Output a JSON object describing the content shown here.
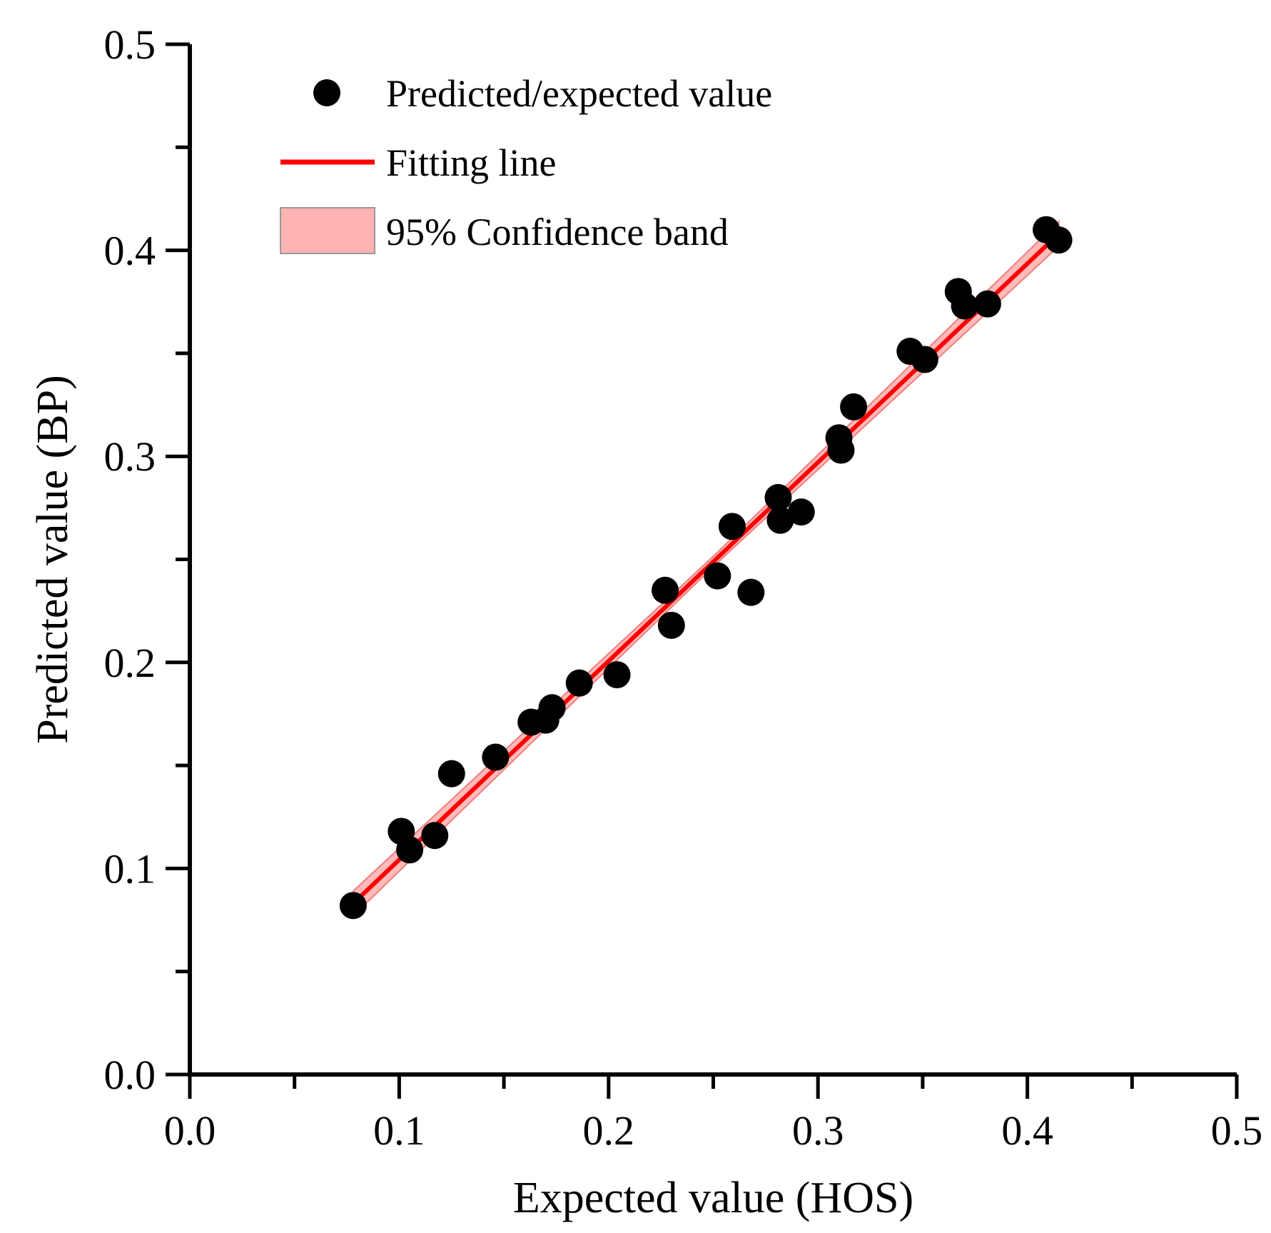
{
  "chart_data": {
    "type": "scatter",
    "xlabel": "Expected value (HOS)",
    "ylabel": "Predicted value (BP)",
    "xlim": [
      0.0,
      0.5
    ],
    "ylim": [
      0.0,
      0.5
    ],
    "x_ticks": [
      "0.0",
      "0.1",
      "0.2",
      "0.3",
      "0.4",
      "0.5"
    ],
    "y_ticks": [
      "0.0",
      "0.1",
      "0.2",
      "0.3",
      "0.4",
      "0.5"
    ],
    "x_tick_values": [
      0.0,
      0.1,
      0.2,
      0.3,
      0.4,
      0.5
    ],
    "y_tick_values": [
      0.0,
      0.1,
      0.2,
      0.3,
      0.4,
      0.5
    ],
    "minor_tick_step": 0.05,
    "grid": false,
    "legend_position": "top-left",
    "legend": {
      "points": "Predicted/expected value",
      "line": "Fitting line",
      "band": "95% Confidence band"
    },
    "series": [
      {
        "name": "Predicted/expected value",
        "type": "scatter",
        "points": [
          [
            0.078,
            0.082
          ],
          [
            0.101,
            0.118
          ],
          [
            0.105,
            0.109
          ],
          [
            0.117,
            0.116
          ],
          [
            0.125,
            0.146
          ],
          [
            0.146,
            0.154
          ],
          [
            0.163,
            0.171
          ],
          [
            0.17,
            0.172
          ],
          [
            0.173,
            0.178
          ],
          [
            0.186,
            0.19
          ],
          [
            0.204,
            0.194
          ],
          [
            0.227,
            0.235
          ],
          [
            0.23,
            0.218
          ],
          [
            0.252,
            0.242
          ],
          [
            0.259,
            0.266
          ],
          [
            0.268,
            0.234
          ],
          [
            0.281,
            0.28
          ],
          [
            0.282,
            0.269
          ],
          [
            0.292,
            0.273
          ],
          [
            0.31,
            0.309
          ],
          [
            0.311,
            0.303
          ],
          [
            0.317,
            0.324
          ],
          [
            0.344,
            0.351
          ],
          [
            0.351,
            0.347
          ],
          [
            0.367,
            0.38
          ],
          [
            0.37,
            0.373
          ],
          [
            0.381,
            0.374
          ],
          [
            0.409,
            0.41
          ],
          [
            0.415,
            0.405
          ]
        ]
      },
      {
        "name": "Fitting line",
        "type": "line",
        "x": [
          0.078,
          0.415
        ],
        "y": [
          0.083,
          0.408
        ]
      },
      {
        "name": "95% Confidence band",
        "type": "area",
        "x": [
          0.078,
          0.25,
          0.415
        ],
        "lower": [
          0.077,
          0.2465,
          0.402
        ],
        "upper": [
          0.089,
          0.2515,
          0.414
        ]
      }
    ],
    "colors": {
      "points": "#000000",
      "line": "#ff0000",
      "band_fill": "#ffb3b3",
      "band_edge": "#f07070",
      "axis": "#000000"
    }
  }
}
